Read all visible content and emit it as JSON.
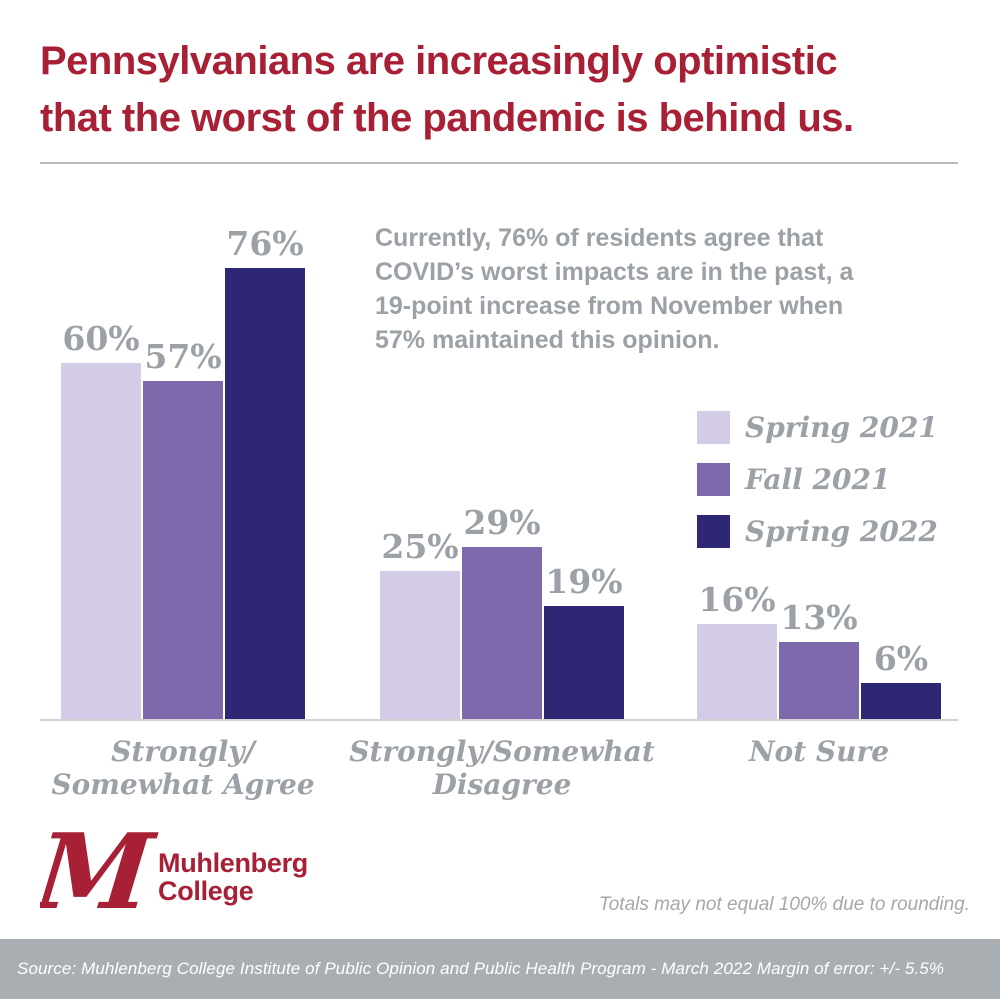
{
  "header": {
    "title": "Pennsylvanians are increasingly optimistic\nthat the worst of the pandemic is behind us."
  },
  "summary": {
    "text": "Currently, 76% of residents agree that\nCOVID’s worst impacts are in the past, a\n19-point increase from November when\n57% maintained this opinion."
  },
  "chart_data": {
    "type": "bar",
    "categories": [
      "Strongly/\nSomewhat Agree",
      "Strongly/Somewhat\nDisagree",
      "Not Sure"
    ],
    "series": [
      {
        "name": "Spring 2021",
        "color": "#d4cce6",
        "values": [
          60,
          25,
          16
        ]
      },
      {
        "name": "Fall 2021",
        "color": "#7d69ac",
        "values": [
          57,
          29,
          13
        ]
      },
      {
        "name": "Spring 2022",
        "color": "#2e2774",
        "values": [
          76,
          19,
          6
        ]
      }
    ],
    "value_suffix": "%",
    "ylim": [
      0,
      80
    ],
    "grid": false,
    "legend_position": "right",
    "data_labels": true
  },
  "legend": {
    "items": [
      {
        "label": "Spring 2021",
        "color": "#d4cce6"
      },
      {
        "label": "Fall 2021",
        "color": "#7d69ac"
      },
      {
        "label": "Spring 2022",
        "color": "#2e2774"
      }
    ]
  },
  "logo": {
    "monogram": "M",
    "wordmark": "Muhlenberg\nCollege",
    "color": "#a72035"
  },
  "footnote": {
    "text": "Totals may not equal 100% due to rounding."
  },
  "footer": {
    "text": "Source: Muhlenberg College Institute of Public Opinion and Public Health Program - March 2022 Margin of error: +/- 5.5%",
    "background": "#a9aeb2"
  },
  "colors": {
    "title_red": "#a72035",
    "gray_text": "#9ba1a6",
    "divider": "#b8b9bb",
    "axis": "#d2d3d5",
    "footer_bg": "#a9aeb2"
  }
}
